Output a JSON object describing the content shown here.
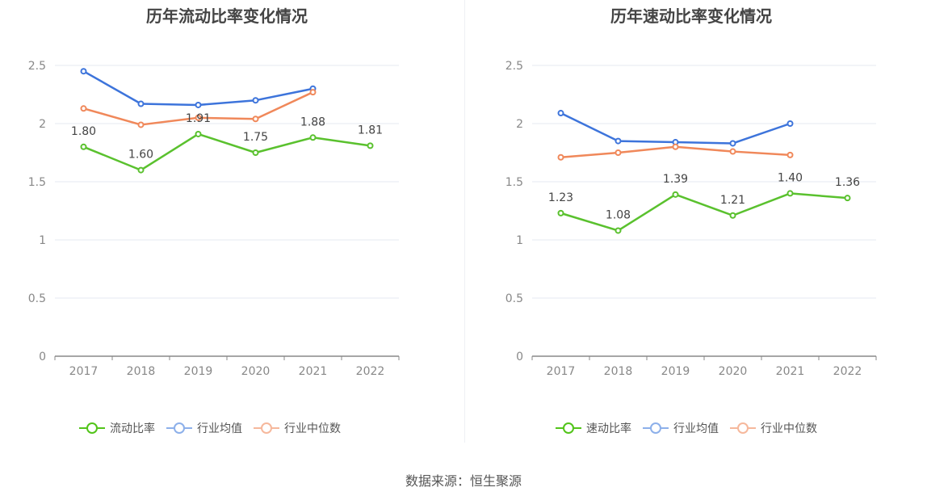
{
  "source": "数据来源：恒生聚源",
  "chart_data": [
    {
      "type": "line",
      "title": "历年流动比率变化情况",
      "x": [
        "2017",
        "2018",
        "2019",
        "2020",
        "2021",
        "2022"
      ],
      "ylim": [
        0,
        2.5
      ],
      "yticks": [
        "0",
        "0.5",
        "1",
        "1.5",
        "2",
        "2.5"
      ],
      "grid": true,
      "legend_position": "bottom",
      "series": [
        {
          "name": "流动比率",
          "color": "#5ac12e",
          "values": [
            1.8,
            1.6,
            1.91,
            1.75,
            1.88,
            1.81
          ],
          "labels": [
            "1.80",
            "1.60",
            "1.91",
            "1.75",
            "1.88",
            "1.81"
          ],
          "legend_color": "#52c41a"
        },
        {
          "name": "行业均值",
          "color": "#3d74db",
          "values": [
            2.45,
            2.17,
            2.16,
            2.2,
            2.3,
            null
          ],
          "legend_color": "#8db0ea"
        },
        {
          "name": "行业中位数",
          "color": "#f0885a",
          "values": [
            2.13,
            1.99,
            2.05,
            2.04,
            2.27,
            null
          ],
          "legend_color": "#f6b89c"
        }
      ]
    },
    {
      "type": "line",
      "title": "历年速动比率变化情况",
      "x": [
        "2017",
        "2018",
        "2019",
        "2020",
        "2021",
        "2022"
      ],
      "ylim": [
        0,
        2.5
      ],
      "yticks": [
        "0",
        "0.5",
        "1",
        "1.5",
        "2",
        "2.5"
      ],
      "grid": true,
      "legend_position": "bottom",
      "series": [
        {
          "name": "速动比率",
          "color": "#5ac12e",
          "values": [
            1.23,
            1.08,
            1.39,
            1.21,
            1.4,
            1.36
          ],
          "labels": [
            "1.23",
            "1.08",
            "1.39",
            "1.21",
            "1.40",
            "1.36"
          ],
          "legend_color": "#52c41a"
        },
        {
          "name": "行业均值",
          "color": "#3d74db",
          "values": [
            2.09,
            1.85,
            1.84,
            1.83,
            2.0,
            null
          ],
          "legend_color": "#8db0ea"
        },
        {
          "name": "行业中位数",
          "color": "#f0885a",
          "values": [
            1.71,
            1.75,
            1.8,
            1.76,
            1.73,
            null
          ],
          "legend_color": "#f6b89c"
        }
      ]
    }
  ]
}
